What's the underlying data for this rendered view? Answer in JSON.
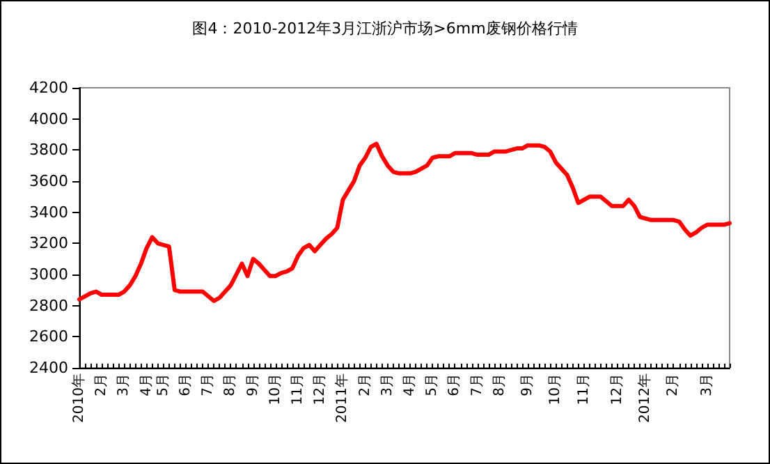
{
  "chart_data": {
    "type": "line",
    "title": "图4：2010-2012年3月江浙沪市场>6mm废钢价格行情",
    "categories": [
      "2010年",
      null,
      null,
      null,
      "2月",
      null,
      null,
      null,
      "3月",
      null,
      null,
      null,
      "4月",
      null,
      null,
      "5月",
      null,
      null,
      null,
      "6月",
      null,
      null,
      null,
      "7月",
      null,
      null,
      null,
      "8月",
      null,
      null,
      null,
      "9月",
      null,
      null,
      null,
      "10月",
      null,
      null,
      null,
      "11月",
      null,
      null,
      null,
      "12月",
      null,
      null,
      null,
      "2011年",
      null,
      null,
      null,
      "2月",
      null,
      null,
      null,
      "3月",
      null,
      null,
      null,
      "4月",
      null,
      null,
      null,
      "5月",
      null,
      null,
      null,
      "6月",
      null,
      null,
      null,
      "7月",
      null,
      null,
      null,
      "8月",
      null,
      null,
      null,
      null,
      "9月",
      null,
      null,
      null,
      null,
      "10月",
      null,
      null,
      null,
      null,
      "11月",
      null,
      null,
      null,
      null,
      null,
      "12月",
      null,
      null,
      null,
      null,
      "2012年",
      null,
      null,
      null,
      null,
      "2月",
      null,
      null,
      null,
      null,
      null,
      "3月",
      null,
      null,
      null,
      null
    ],
    "series": [
      {
        "color": "#ff0000",
        "values": [
          2840,
          2860,
          2880,
          2890,
          2870,
          2870,
          2870,
          2870,
          2890,
          2930,
          2990,
          3070,
          3170,
          3240,
          3200,
          3190,
          3180,
          2900,
          2890,
          2890,
          2890,
          2890,
          2890,
          2860,
          2830,
          2850,
          2890,
          2930,
          3000,
          3070,
          2990,
          3100,
          3070,
          3030,
          2990,
          2990,
          3010,
          3020,
          3040,
          3120,
          3170,
          3190,
          3150,
          3190,
          3230,
          3260,
          3300,
          3480,
          3540,
          3600,
          3700,
          3750,
          3820,
          3840,
          3760,
          3700,
          3660,
          3650,
          3650,
          3650,
          3660,
          3680,
          3700,
          3750,
          3760,
          3760,
          3760,
          3780,
          3780,
          3780,
          3780,
          3770,
          3770,
          3770,
          3790,
          3790,
          3790,
          3800,
          3810,
          3810,
          3830,
          3830,
          3830,
          3820,
          3790,
          3720,
          3680,
          3640,
          3560,
          3460,
          3480,
          3500,
          3500,
          3500,
          3470,
          3440,
          3440,
          3440,
          3480,
          3440,
          3370,
          3360,
          3350,
          3350,
          3350,
          3350,
          3350,
          3340,
          3290,
          3250,
          3270,
          3300,
          3320,
          3320,
          3320,
          3320,
          3330
        ]
      }
    ],
    "ylim": [
      2400,
      4200
    ],
    "yticks": [
      {
        "value": 2400,
        "label": "2400"
      },
      {
        "value": 2600,
        "label": "2600"
      },
      {
        "value": 2800,
        "label": "2800"
      },
      {
        "value": 3000,
        "label": "3000"
      },
      {
        "value": 3200,
        "label": "3200"
      },
      {
        "value": 3400,
        "label": "3400"
      },
      {
        "value": 3600,
        "label": "3600"
      },
      {
        "value": 3800,
        "label": "3800"
      },
      {
        "value": 4000,
        "label": "4000"
      },
      {
        "value": 4200,
        "label": "4200"
      }
    ],
    "grid": false,
    "marker": "none",
    "line_style": "solid"
  }
}
